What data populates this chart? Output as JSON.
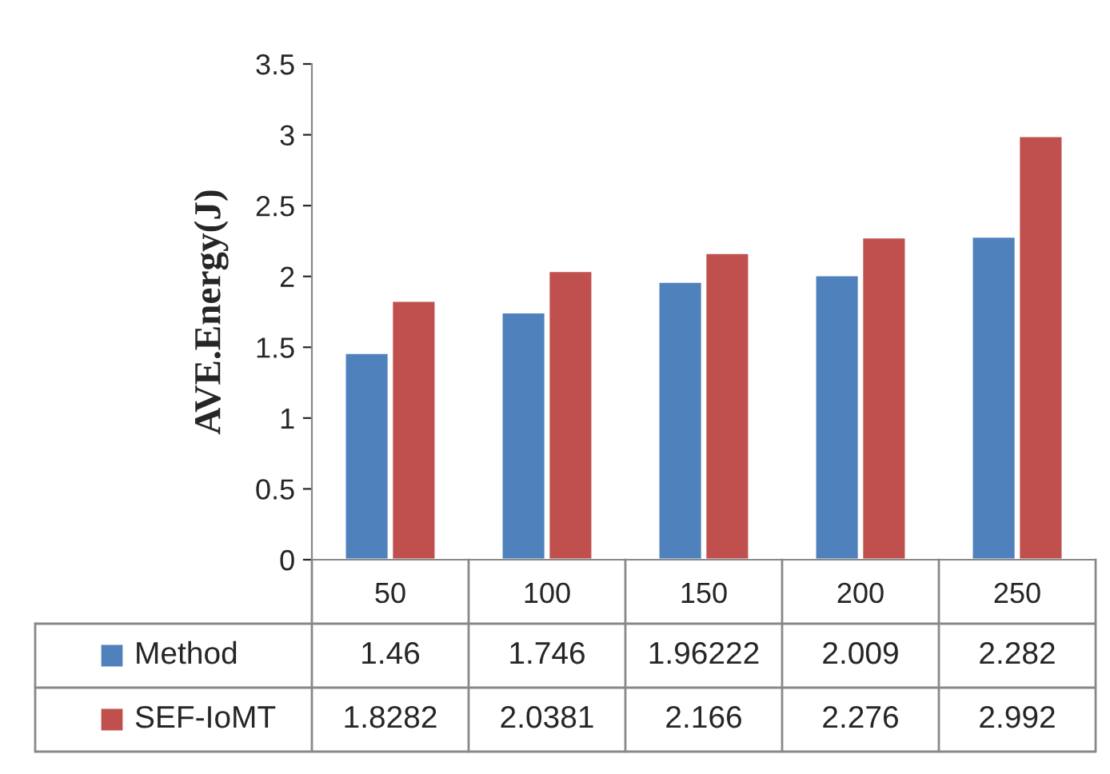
{
  "chart_data": {
    "type": "bar",
    "ylabel": "AVE.Energy(J)",
    "categories": [
      "50",
      "100",
      "150",
      "200",
      "250"
    ],
    "series": [
      {
        "name": "Method",
        "color": "#4f81bd",
        "values": [
          1.46,
          1.746,
          1.96222,
          2.009,
          2.282
        ]
      },
      {
        "name": "SEF-IoMT",
        "color": "#c0504d",
        "values": [
          1.8282,
          2.0381,
          2.166,
          2.276,
          2.992
        ]
      }
    ],
    "ylim": [
      0,
      3.5
    ],
    "yticks": [
      0,
      0.5,
      1,
      1.5,
      2,
      2.5,
      3,
      3.5
    ],
    "grid": false,
    "legend": "bottom",
    "data_labels": true
  }
}
